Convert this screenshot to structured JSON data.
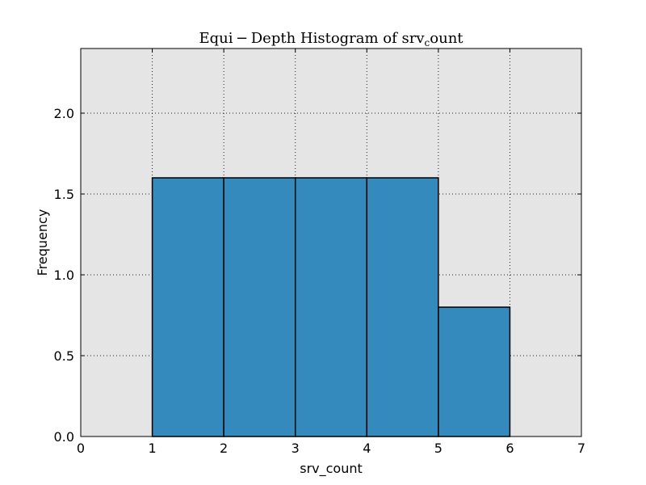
{
  "chart_data": {
    "type": "bar",
    "title_main": "Equi − Depth Histogram of srv",
    "title_sub": "c",
    "title_tail": "ount",
    "xlabel": "srv_count",
    "ylabel": "Frequency",
    "xlim": [
      0,
      7
    ],
    "ylim": [
      0,
      2.4
    ],
    "xticks": [
      0,
      1,
      2,
      3,
      4,
      5,
      6,
      7
    ],
    "xtick_labels": [
      "0",
      "1",
      "2",
      "3",
      "4",
      "5",
      "6",
      "7"
    ],
    "yticks": [
      0.0,
      0.5,
      1.0,
      1.5,
      2.0
    ],
    "ytick_labels": [
      "0.0",
      "0.5",
      "1.0",
      "1.5",
      "2.0"
    ],
    "grid": true,
    "bins": [
      {
        "x0": 1,
        "x1": 2,
        "value": 1.6
      },
      {
        "x0": 2,
        "x1": 3,
        "value": 1.6
      },
      {
        "x0": 3,
        "x1": 4,
        "value": 1.6
      },
      {
        "x0": 4,
        "x1": 5,
        "value": 1.6
      },
      {
        "x0": 5,
        "x1": 6,
        "value": 0.8
      }
    ],
    "colors": {
      "bar": "#348abd",
      "background": "#e5e5e5",
      "edge": "#000000"
    }
  }
}
